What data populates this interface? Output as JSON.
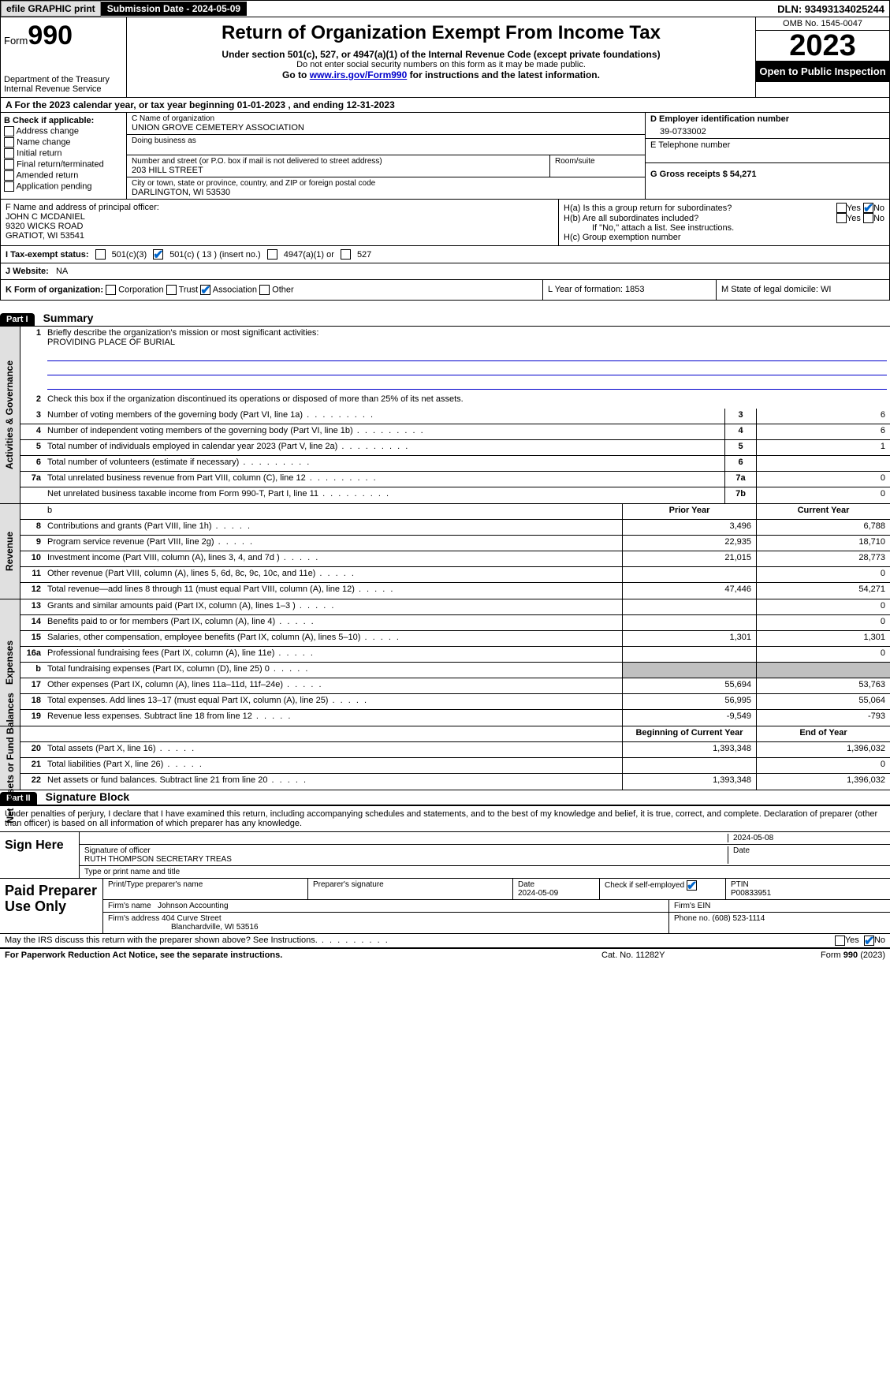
{
  "topbar": {
    "efile_label": "efile GRAPHIC print",
    "submission_label": "Submission Date - 2024-05-09",
    "dln_label": "DLN: 93493134025244"
  },
  "header": {
    "form_prefix": "Form",
    "form_num": "990",
    "dept": "Department of the Treasury",
    "irs": "Internal Revenue Service",
    "title": "Return of Organization Exempt From Income Tax",
    "subtitle": "Under section 501(c), 527, or 4947(a)(1) of the Internal Revenue Code (except private foundations)",
    "note": "Do not enter social security numbers on this form as it may be made public.",
    "goto_prefix": "Go to ",
    "goto_link": "www.irs.gov/Form990",
    "goto_suffix": " for instructions and the latest information.",
    "omb": "OMB No. 1545-0047",
    "year": "2023",
    "open_public": "Open to Public Inspection"
  },
  "lineA": "A For the 2023 calendar year, or tax year beginning 01-01-2023    , and ending 12-31-2023",
  "colB": {
    "header": "B Check if applicable:",
    "options": [
      "Address change",
      "Name change",
      "Initial return",
      "Final return/terminated",
      "Amended return",
      "Application pending"
    ]
  },
  "colC": {
    "name_label": "C Name of organization",
    "name": "UNION GROVE CEMETERY ASSOCIATION",
    "dba_label": "Doing business as",
    "street_label": "Number and street (or P.O. box if mail is not delivered to street address)",
    "street": "203 HILL STREET",
    "room_label": "Room/suite",
    "city_label": "City or town, state or province, country, and ZIP or foreign postal code",
    "city": "DARLINGTON, WI  53530"
  },
  "colD": {
    "ein_label": "D Employer identification number",
    "ein": "39-0733002",
    "phone_label": "E Telephone number",
    "receipts_label": "G Gross receipts $ 54,271"
  },
  "officer": {
    "label": "F  Name and address of principal officer:",
    "name": "JOHN C MCDANIEL",
    "addr1": "9320 WICKS ROAD",
    "addr2": "GRATIOT, WI  53541"
  },
  "sectionH": {
    "ha": "H(a)  Is this a group return for subordinates?",
    "hb": "H(b)  Are all subordinates included?",
    "hb_note": "If \"No,\" attach a list. See instructions.",
    "hc": "H(c)  Group exemption number",
    "yes": "Yes",
    "no": "No"
  },
  "sectionI": {
    "label": "I   Tax-exempt status:",
    "opt1": "501(c)(3)",
    "opt2": "501(c) ( 13 ) (insert no.)",
    "opt3": "4947(a)(1) or",
    "opt4": "527"
  },
  "sectionJ": {
    "label": "J   Website:",
    "value": "NA"
  },
  "sectionK": {
    "label": "K Form of organization:",
    "opts": [
      "Corporation",
      "Trust",
      "Association",
      "Other"
    ],
    "checked_index": 2
  },
  "sectionL": {
    "label": "L Year of formation: 1853"
  },
  "sectionM": {
    "label": "M State of legal domicile: WI"
  },
  "parts": {
    "p1": "Part I",
    "p1_title": "Summary",
    "p2": "Part II",
    "p2_title": "Signature Block"
  },
  "summary": {
    "q1": "Briefly describe the organization's mission or most significant activities:",
    "q1_val": "PROVIDING PLACE OF BURIAL",
    "q2": "Check this box        if the organization discontinued its operations or disposed of more than 25% of its net assets.",
    "sidebars": {
      "gov": "Activities & Governance",
      "rev": "Revenue",
      "exp": "Expenses",
      "net": "Net Assets or Fund Balances"
    },
    "col_headers": {
      "prior": "Prior Year",
      "current": "Current Year",
      "begin": "Beginning of Current Year",
      "end": "End of Year"
    },
    "rows_gov": [
      {
        "n": "3",
        "d": "Number of voting members of the governing body (Part VI, line 1a)",
        "c": "3",
        "v": "6"
      },
      {
        "n": "4",
        "d": "Number of independent voting members of the governing body (Part VI, line 1b)",
        "c": "4",
        "v": "6"
      },
      {
        "n": "5",
        "d": "Total number of individuals employed in calendar year 2023 (Part V, line 2a)",
        "c": "5",
        "v": "1"
      },
      {
        "n": "6",
        "d": "Total number of volunteers (estimate if necessary)",
        "c": "6",
        "v": ""
      },
      {
        "n": "7a",
        "d": "Total unrelated business revenue from Part VIII, column (C), line 12",
        "c": "7a",
        "v": "0"
      },
      {
        "n": "",
        "d": "Net unrelated business taxable income from Form 990-T, Part I, line 11",
        "c": "7b",
        "v": "0"
      }
    ],
    "rows_rev": [
      {
        "n": "8",
        "d": "Contributions and grants (Part VIII, line 1h)",
        "p": "3,496",
        "v": "6,788"
      },
      {
        "n": "9",
        "d": "Program service revenue (Part VIII, line 2g)",
        "p": "22,935",
        "v": "18,710"
      },
      {
        "n": "10",
        "d": "Investment income (Part VIII, column (A), lines 3, 4, and 7d )",
        "p": "21,015",
        "v": "28,773"
      },
      {
        "n": "11",
        "d": "Other revenue (Part VIII, column (A), lines 5, 6d, 8c, 9c, 10c, and 11e)",
        "p": "",
        "v": "0"
      },
      {
        "n": "12",
        "d": "Total revenue—add lines 8 through 11 (must equal Part VIII, column (A), line 12)",
        "p": "47,446",
        "v": "54,271"
      }
    ],
    "rows_exp": [
      {
        "n": "13",
        "d": "Grants and similar amounts paid (Part IX, column (A), lines 1–3 )",
        "p": "",
        "v": "0"
      },
      {
        "n": "14",
        "d": "Benefits paid to or for members (Part IX, column (A), line 4)",
        "p": "",
        "v": "0"
      },
      {
        "n": "15",
        "d": "Salaries, other compensation, employee benefits (Part IX, column (A), lines 5–10)",
        "p": "1,301",
        "v": "1,301"
      },
      {
        "n": "16a",
        "d": "Professional fundraising fees (Part IX, column (A), line 11e)",
        "p": "",
        "v": "0"
      },
      {
        "n": "b",
        "d": "Total fundraising expenses (Part IX, column (D), line 25) 0",
        "p": "shaded",
        "v": "shaded"
      },
      {
        "n": "17",
        "d": "Other expenses (Part IX, column (A), lines 11a–11d, 11f–24e)",
        "p": "55,694",
        "v": "53,763"
      },
      {
        "n": "18",
        "d": "Total expenses. Add lines 13–17 (must equal Part IX, column (A), line 25)",
        "p": "56,995",
        "v": "55,064"
      },
      {
        "n": "19",
        "d": "Revenue less expenses. Subtract line 18 from line 12",
        "p": "-9,549",
        "v": "-793"
      }
    ],
    "rows_net": [
      {
        "n": "20",
        "d": "Total assets (Part X, line 16)",
        "p": "1,393,348",
        "v": "1,396,032"
      },
      {
        "n": "21",
        "d": "Total liabilities (Part X, line 26)",
        "p": "",
        "v": "0"
      },
      {
        "n": "22",
        "d": "Net assets or fund balances. Subtract line 21 from line 20",
        "p": "1,393,348",
        "v": "1,396,032"
      }
    ]
  },
  "signature": {
    "penalties": "Under penalties of perjury, I declare that I have examined this return, including accompanying schedules and statements, and to the best of my knowledge and belief, it is true, correct, and complete. Declaration of preparer (other than officer) is based on all information of which preparer has any knowledge.",
    "sign_here": "Sign Here",
    "sig_officer": "Signature of officer",
    "date": "Date",
    "date_val": "2024-05-08",
    "officer_name": "RUTH THOMPSON  SECRETARY TREAS",
    "type_name": "Type or print name and title",
    "paid_label": "Paid Preparer Use Only",
    "prep_name_label": "Print/Type preparer's name",
    "prep_sig_label": "Preparer's signature",
    "prep_date_label": "Date",
    "prep_date": "2024-05-09",
    "check_self": "Check         if self-employed",
    "ptin_label": "PTIN",
    "ptin": "P00833951",
    "firm_name_label": "Firm's name",
    "firm_name": "Johnson Accounting",
    "firm_ein_label": "Firm's EIN",
    "firm_addr_label": "Firm's address",
    "firm_addr1": "404 Curve Street",
    "firm_addr2": "Blanchardville, WI  53516",
    "phone_label": "Phone no.",
    "phone": "(608) 523-1114",
    "discuss": "May the IRS discuss this return with the preparer shown above? See Instructions.",
    "yes": "Yes",
    "no": "No"
  },
  "footer": {
    "paperwork": "For Paperwork Reduction Act Notice, see the separate instructions.",
    "cat": "Cat. No. 11282Y",
    "formref": "Form 990 (2023)"
  }
}
